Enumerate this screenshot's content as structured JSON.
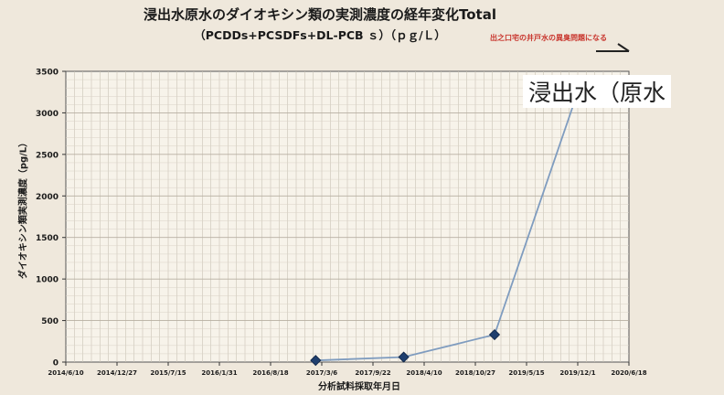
{
  "chart_data": {
    "type": "line",
    "title": "浸出水原水のダイオキシン類の実測濃度の経年変化Total",
    "subtitle": "（PCDDs+PCSDFs+DL-PCB ｓ）（ｐｇ/Ｌ）",
    "xlabel": "分析試料採取年月日",
    "ylabel": "ダイオキシン類実測濃度（pg/L）",
    "ylim": [
      0,
      3500
    ],
    "yticks": [
      0,
      500,
      1000,
      1500,
      2000,
      2500,
      3000,
      3500
    ],
    "xticks": [
      "2014/6/10",
      "2014/12/27",
      "2015/7/15",
      "2016/1/31",
      "2016/8/18",
      "2017/3/6",
      "2017/9/22",
      "2018/4/10",
      "2018/10/27",
      "2019/5/15",
      "2019/12/1",
      "2020/6/18"
    ],
    "xlim": [
      "2014-06-10",
      "2020-06-18"
    ],
    "grid": true,
    "series": [
      {
        "x": [
          "2017-02-10",
          "2018-01-20",
          "2019-01-10",
          "2019-11-20"
        ],
        "values": [
          20,
          60,
          330,
          3150
        ]
      }
    ],
    "annotation": "出之口宅の井戸水の異臭問題になる",
    "overlay_text": "浸出水（原水",
    "colors": {
      "line": "#7f9cbf",
      "marker": "#1f3f6e",
      "arrow": "#222222"
    }
  }
}
